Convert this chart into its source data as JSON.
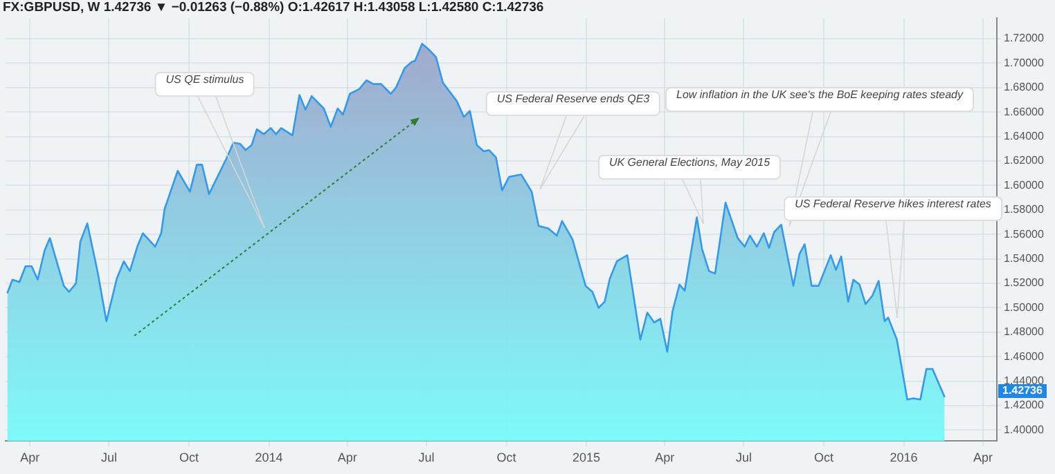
{
  "chart_data": {
    "type": "area",
    "title": "FX:GBPUSD, W 1.42736 ▼ −0.01263 (−0.88%) O:1.42617 H:1.43058 L:1.42580 C:1.42736",
    "series": [
      {
        "color": "#3399ee",
        "x": [
          "2013-03-06",
          "2013-03-12",
          "2013-03-20",
          "2013-03-27",
          "2013-04-03",
          "2013-04-10",
          "2013-04-18",
          "2013-04-24",
          "2013-05-10",
          "2013-05-16",
          "2013-05-24",
          "2013-05-29",
          "2013-06-06",
          "2013-06-18",
          "2013-06-28",
          "2013-07-10",
          "2013-07-18",
          "2013-07-25",
          "2013-08-03",
          "2013-08-09",
          "2013-08-23",
          "2013-08-30",
          "2013-09-03",
          "2013-09-18",
          "2013-10-02",
          "2013-10-10",
          "2013-10-16",
          "2013-10-24",
          "2013-11-13",
          "2013-11-21",
          "2013-11-29",
          "2013-12-05",
          "2013-12-12",
          "2013-12-18",
          "2013-12-26",
          "2014-01-03",
          "2014-01-09",
          "2014-01-15",
          "2014-01-28",
          "2014-02-05",
          "2014-02-12",
          "2014-02-19",
          "2014-03-05",
          "2014-03-13",
          "2014-03-21",
          "2014-03-27",
          "2014-04-04",
          "2014-04-15",
          "2014-04-23",
          "2014-05-01",
          "2014-05-10",
          "2014-05-21",
          "2014-05-27",
          "2014-06-06",
          "2014-06-14",
          "2014-06-18",
          "2014-06-26",
          "2014-07-04",
          "2014-07-12",
          "2014-07-20",
          "2014-08-05",
          "2014-08-13",
          "2014-08-20",
          "2014-08-28",
          "2014-09-05",
          "2014-09-11",
          "2014-09-19",
          "2014-09-26",
          "2014-10-04",
          "2014-10-18",
          "2014-10-30",
          "2014-11-07",
          "2014-11-18",
          "2014-11-28",
          "2014-12-04",
          "2014-12-16",
          "2014-12-31",
          "2015-01-08",
          "2015-01-15",
          "2015-01-22",
          "2015-01-28",
          "2015-02-05",
          "2015-02-17",
          "2015-03-04",
          "2015-03-12",
          "2015-03-20",
          "2015-03-27",
          "2015-04-04",
          "2015-04-10",
          "2015-04-18",
          "2015-04-24",
          "2015-05-08",
          "2015-05-14",
          "2015-05-22",
          "2015-05-29",
          "2015-06-10",
          "2015-06-24",
          "2015-07-02",
          "2015-07-08",
          "2015-07-16",
          "2015-07-24",
          "2015-07-30",
          "2015-08-05",
          "2015-08-13",
          "2015-08-27",
          "2015-09-03",
          "2015-09-09",
          "2015-09-17",
          "2015-09-25",
          "2015-10-09",
          "2015-10-15",
          "2015-10-21",
          "2015-10-29",
          "2015-11-04",
          "2015-11-11",
          "2015-11-18",
          "2015-11-26",
          "2015-12-03",
          "2015-12-10",
          "2015-12-14",
          "2015-12-24",
          "2016-01-05",
          "2016-01-12",
          "2016-01-20",
          "2016-01-27",
          "2016-02-03",
          "2016-02-17"
        ],
        "values": [
          1.512,
          1.523,
          1.521,
          1.534,
          1.534,
          1.523,
          1.547,
          1.557,
          1.518,
          1.513,
          1.52,
          1.554,
          1.569,
          1.529,
          1.489,
          1.524,
          1.538,
          1.53,
          1.551,
          1.561,
          1.55,
          1.561,
          1.581,
          1.612,
          1.595,
          1.617,
          1.617,
          1.593,
          1.622,
          1.635,
          1.634,
          1.629,
          1.633,
          1.646,
          1.642,
          1.647,
          1.642,
          1.647,
          1.641,
          1.674,
          1.662,
          1.673,
          1.663,
          1.648,
          1.663,
          1.658,
          1.675,
          1.679,
          1.686,
          1.683,
          1.683,
          1.675,
          1.68,
          1.696,
          1.701,
          1.702,
          1.716,
          1.711,
          1.705,
          1.684,
          1.669,
          1.656,
          1.661,
          1.633,
          1.628,
          1.629,
          1.623,
          1.596,
          1.607,
          1.609,
          1.595,
          1.567,
          1.565,
          1.559,
          1.571,
          1.556,
          1.518,
          1.513,
          1.5,
          1.505,
          1.524,
          1.538,
          1.543,
          1.474,
          1.496,
          1.488,
          1.491,
          1.464,
          1.497,
          1.519,
          1.514,
          1.574,
          1.548,
          1.53,
          1.528,
          1.586,
          1.557,
          1.55,
          1.559,
          1.55,
          1.561,
          1.549,
          1.562,
          1.568,
          1.518,
          1.544,
          1.552,
          1.518,
          1.518,
          1.543,
          1.531,
          1.542,
          1.505,
          1.523,
          1.519,
          1.503,
          1.51,
          1.522,
          1.489,
          1.492,
          1.474,
          1.425,
          1.426,
          1.425,
          1.45,
          1.45,
          1.427
        ]
      }
    ],
    "xlim": [
      "2013-03-04",
      "2016-04-17"
    ],
    "xticks": [
      {
        "value": "2013-04-01",
        "label": "Apr"
      },
      {
        "value": "2013-07-01",
        "label": "Jul"
      },
      {
        "value": "2013-10-01",
        "label": "Oct"
      },
      {
        "value": "2014-01-01",
        "label": "2014"
      },
      {
        "value": "2014-04-01",
        "label": "Apr"
      },
      {
        "value": "2014-07-01",
        "label": "Jul"
      },
      {
        "value": "2014-10-01",
        "label": "Oct"
      },
      {
        "value": "2015-01-01",
        "label": "2015"
      },
      {
        "value": "2015-04-01",
        "label": "Apr"
      },
      {
        "value": "2015-07-01",
        "label": "Jul"
      },
      {
        "value": "2015-10-01",
        "label": "Oct"
      },
      {
        "value": "2016-01-01",
        "label": "2016"
      },
      {
        "value": "2016-04-01",
        "label": "Apr"
      }
    ],
    "ylim": [
      1.391,
      1.737
    ],
    "yticks": [
      {
        "value": 1.4,
        "label": "1.40000"
      },
      {
        "value": 1.42,
        "label": "1.42000"
      },
      {
        "value": 1.44,
        "label": "1.44000"
      },
      {
        "value": 1.46,
        "label": "1.46000"
      },
      {
        "value": 1.48,
        "label": "1.48000"
      },
      {
        "value": 1.5,
        "label": "1.50000"
      },
      {
        "value": 1.52,
        "label": "1.52000"
      },
      {
        "value": 1.54,
        "label": "1.54000"
      },
      {
        "value": 1.56,
        "label": "1.56000"
      },
      {
        "value": 1.58,
        "label": "1.58000"
      },
      {
        "value": 1.6,
        "label": "1.60000"
      },
      {
        "value": 1.62,
        "label": "1.62000"
      },
      {
        "value": 1.64,
        "label": "1.64000"
      },
      {
        "value": 1.66,
        "label": "1.66000"
      },
      {
        "value": 1.68,
        "label": "1.68000"
      },
      {
        "value": 1.7,
        "label": "1.70000"
      },
      {
        "value": 1.72,
        "label": "1.72000"
      }
    ],
    "annotations": [
      "US QE stimulus",
      "US Federal Reserve ends QE3",
      "UK General Elections, May 2015",
      "Low inflation in the UK see's the BoE keeping rates steady",
      "US Federal Reserve hikes interest rates",
      "1.42736"
    ],
    "grid": true,
    "marker": "none"
  }
}
